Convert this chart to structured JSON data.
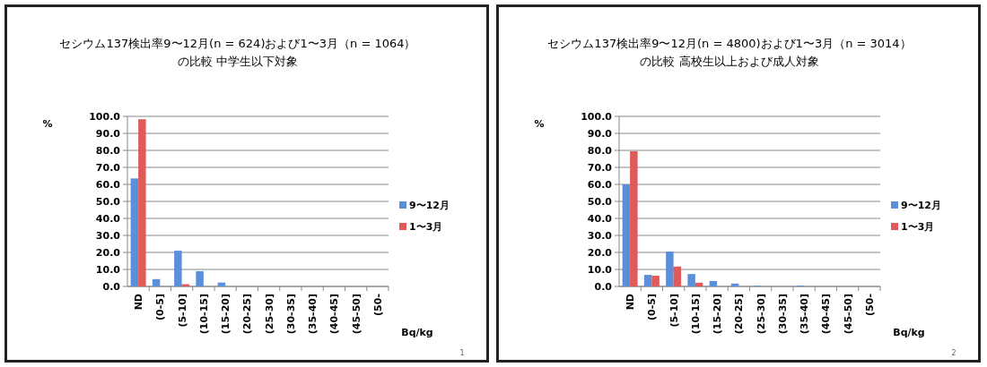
{
  "chart_data": [
    {
      "type": "bar",
      "title": "セシウム137検出率9〜12月(n = 624)および1〜3月（n = 1064）",
      "subtitle": "の比較 中学生以下対象",
      "ylabel": "%",
      "xlabel": "Bq/kg",
      "categories": [
        "ND",
        "(0-5]",
        "(5-10]",
        "(10-15]",
        "(15-20]",
        "(20-25]",
        "(25-30]",
        "(30-35]",
        "(35-40]",
        "(40-45]",
        "(45-50]",
        "(50-"
      ],
      "series": [
        {
          "name": "9〜12月",
          "color": "#5b8fd9",
          "values": [
            63.5,
            4.3,
            21.0,
            9.0,
            2.3,
            0,
            0,
            0,
            0,
            0,
            0,
            0
          ]
        },
        {
          "name": "1〜3月",
          "color": "#e05a5a",
          "values": [
            98.3,
            0,
            1.3,
            0,
            0,
            0,
            0,
            0,
            0,
            0,
            0,
            0
          ]
        }
      ],
      "ylim": [
        0,
        100
      ],
      "yticks": [
        {
          "value": 0,
          "label": "0.0"
        },
        {
          "value": 10,
          "label": "10.0"
        },
        {
          "value": 20,
          "label": "20.0"
        },
        {
          "value": 30,
          "label": "30.0"
        },
        {
          "value": 40,
          "label": "40.0"
        },
        {
          "value": 50,
          "label": "50.0"
        },
        {
          "value": 60,
          "label": "60.0"
        },
        {
          "value": 70,
          "label": "70.0"
        },
        {
          "value": 80,
          "label": "80.0"
        },
        {
          "value": 90,
          "label": "90.0"
        },
        {
          "value": 100,
          "label": "100.0"
        }
      ],
      "grid": "y",
      "legend": "right",
      "annotations": [
        "1"
      ]
    },
    {
      "type": "bar",
      "title": "セシウム137検出率9〜12月(n = 4800)および1〜3月（n = 3014）",
      "subtitle": "の比較 高校生以上および成人対象",
      "ylabel": "%",
      "xlabel": "Bq/kg",
      "categories": [
        "ND",
        "(0-5]",
        "(5-10]",
        "(10-15]",
        "(15-20]",
        "(20-25]",
        "(25-30]",
        "(30-35]",
        "(35-40]",
        "(40-45]",
        "(45-50]",
        "(50-"
      ],
      "series": [
        {
          "name": "9〜12月",
          "color": "#5b8fd9",
          "values": [
            60.0,
            6.8,
            20.5,
            7.3,
            3.2,
            1.7,
            0.4,
            0,
            0.5,
            0,
            0,
            0
          ]
        },
        {
          "name": "1〜3月",
          "color": "#e05a5a",
          "values": [
            79.5,
            6.3,
            11.7,
            2.2,
            0,
            0,
            0,
            0,
            0,
            0,
            0,
            0
          ]
        }
      ],
      "ylim": [
        0,
        100
      ],
      "yticks": [
        {
          "value": 0,
          "label": "0.0"
        },
        {
          "value": 10,
          "label": "10.0"
        },
        {
          "value": 20,
          "label": "20.0"
        },
        {
          "value": 30,
          "label": "30.0"
        },
        {
          "value": 40,
          "label": "40.0"
        },
        {
          "value": 50,
          "label": "50.0"
        },
        {
          "value": 60,
          "label": "60.0"
        },
        {
          "value": 70,
          "label": "70.0"
        },
        {
          "value": 80,
          "label": "80.0"
        },
        {
          "value": 90,
          "label": "90.0"
        },
        {
          "value": 100,
          "label": "100.0"
        }
      ],
      "grid": "y",
      "legend": "right",
      "annotations": [
        "2"
      ]
    }
  ]
}
